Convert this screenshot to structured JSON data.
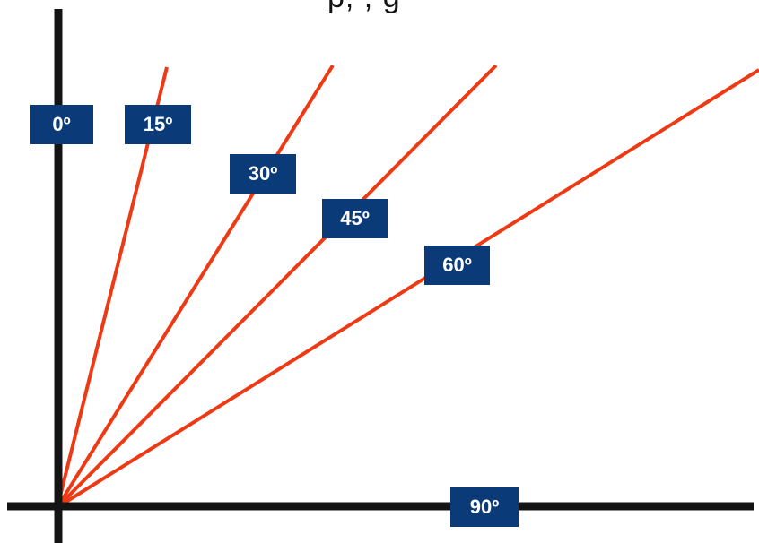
{
  "title_fragment": "p, , g",
  "colors": {
    "axis": "#141414",
    "line": "#ee3a14",
    "label_bg": "#0b3a78",
    "label_text": "#ffffff"
  },
  "labels": {
    "deg_0": "0º",
    "deg_15": "15º",
    "deg_30": "30º",
    "deg_45": "45º",
    "deg_60": "60º",
    "deg_90": "90º"
  }
}
